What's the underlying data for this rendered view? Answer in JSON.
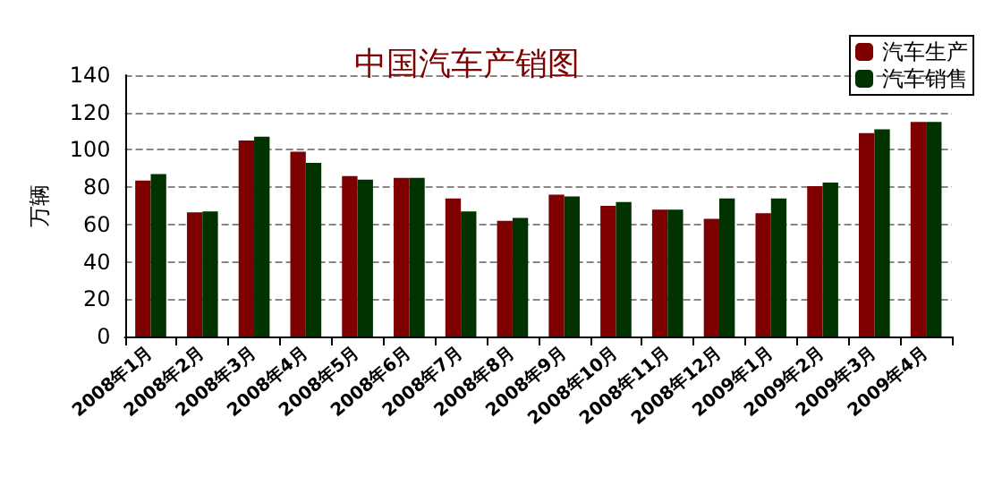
{
  "chart_data": {
    "type": "bar",
    "title": "中国汽车产销图",
    "ylabel": "万辆",
    "categories": [
      "2008年1月",
      "2008年2月",
      "2008年3月",
      "2008年4月",
      "2008年5月",
      "2008年6月",
      "2008年7月",
      "2008年8月",
      "2008年9月",
      "2008年10月",
      "2008年11月",
      "2008年12月",
      "2009年1月",
      "2009年2月",
      "2009年3月",
      "2009年4月"
    ],
    "series": [
      {
        "name": "汽车生产",
        "color": "#7f0000",
        "values": [
          83.5,
          66.5,
          105,
          99,
          86,
          85,
          74,
          62,
          76,
          70,
          68,
          63,
          66,
          80.5,
          109,
          115
        ]
      },
      {
        "name": "汽车销售",
        "color": "#003300",
        "values": [
          87,
          67,
          107,
          93,
          84,
          85,
          67,
          63.5,
          75,
          72,
          68,
          74,
          74,
          82.5,
          111,
          115
        ]
      }
    ],
    "ylim": [
      0,
      140
    ],
    "yticks": [
      0,
      20,
      40,
      60,
      80,
      100,
      120,
      140
    ],
    "grid": "y",
    "legend": "top right"
  }
}
